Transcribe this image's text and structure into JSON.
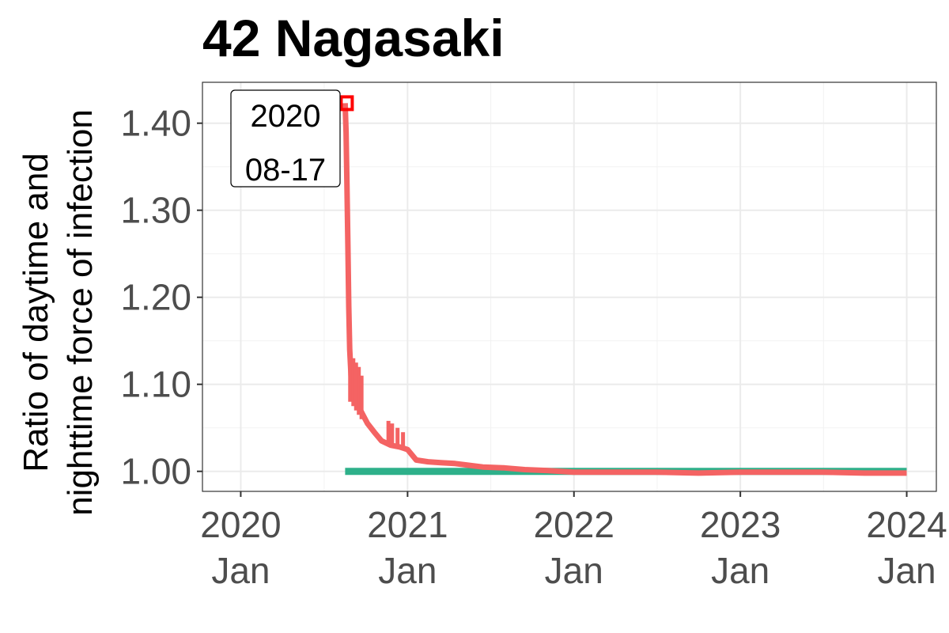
{
  "chart_data": {
    "type": "line",
    "title": "42 Nagasaki",
    "ylabel_lines": [
      "Ratio of daytime and",
      "nighttime force of infection"
    ],
    "xlabel": "",
    "x_ticks": [
      {
        "date": "2020-01-01",
        "year": "2020",
        "month": "Jan"
      },
      {
        "date": "2021-01-01",
        "year": "2021",
        "month": "Jan"
      },
      {
        "date": "2022-01-01",
        "year": "2022",
        "month": "Jan"
      },
      {
        "date": "2023-01-01",
        "year": "2023",
        "month": "Jan"
      },
      {
        "date": "2024-01-01",
        "year": "2024",
        "month": "Jan"
      }
    ],
    "y_ticks": [
      1.0,
      1.1,
      1.2,
      1.3,
      1.4
    ],
    "y_tick_labels": [
      "1.00",
      "1.10",
      "1.20",
      "1.30",
      "1.40"
    ],
    "xlim": [
      "2019-10-09",
      "2024-03-06"
    ],
    "ylim": [
      0.977,
      1.447
    ],
    "grid": true,
    "series": [
      {
        "color": "#2EB08A",
        "points": [
          [
            "2020-08-17",
            1.0
          ],
          [
            "2024-01-01",
            1.0
          ]
        ]
      },
      {
        "color": "#F46363",
        "points": [
          [
            "2020-08-17",
            1.423
          ],
          [
            "2020-08-19",
            1.39
          ],
          [
            "2020-08-21",
            1.33
          ],
          [
            "2020-08-23",
            1.26
          ],
          [
            "2020-08-25",
            1.19
          ],
          [
            "2020-08-27",
            1.14
          ],
          [
            "2020-08-30",
            1.11
          ],
          [
            "2020-09-03",
            1.09
          ],
          [
            "2020-09-10",
            1.08
          ],
          [
            "2020-09-20",
            1.07
          ],
          [
            "2020-10-05",
            1.055
          ],
          [
            "2020-10-20",
            1.045
          ],
          [
            "2020-11-05",
            1.035
          ],
          [
            "2020-11-25",
            1.03
          ],
          [
            "2020-12-15",
            1.028
          ],
          [
            "2021-01-01",
            1.025
          ],
          [
            "2021-01-20",
            1.013
          ],
          [
            "2021-02-15",
            1.011
          ],
          [
            "2021-03-15",
            1.01
          ],
          [
            "2021-04-15",
            1.009
          ],
          [
            "2021-05-15",
            1.007
          ],
          [
            "2021-06-15",
            1.005
          ],
          [
            "2021-08-01",
            1.004
          ],
          [
            "2021-09-15",
            1.002
          ],
          [
            "2021-11-01",
            1.001
          ],
          [
            "2022-01-01",
            0.999
          ],
          [
            "2022-04-01",
            0.999
          ],
          [
            "2022-07-01",
            0.999
          ],
          [
            "2022-10-01",
            0.998
          ],
          [
            "2023-01-01",
            0.999
          ],
          [
            "2023-04-01",
            0.999
          ],
          [
            "2023-07-01",
            0.999
          ],
          [
            "2023-10-01",
            0.998
          ],
          [
            "2024-01-01",
            0.998
          ]
        ]
      }
    ],
    "spikes": [
      {
        "date": "2020-08-28",
        "low": 1.08,
        "high": 1.145
      },
      {
        "date": "2020-09-04",
        "low": 1.075,
        "high": 1.13
      },
      {
        "date": "2020-09-10",
        "low": 1.07,
        "high": 1.125
      },
      {
        "date": "2020-09-16",
        "low": 1.065,
        "high": 1.12
      },
      {
        "date": "2020-09-22",
        "low": 1.06,
        "high": 1.11
      },
      {
        "date": "2020-11-20",
        "low": 1.032,
        "high": 1.058
      },
      {
        "date": "2020-11-28",
        "low": 1.03,
        "high": 1.055
      },
      {
        "date": "2020-12-10",
        "low": 1.028,
        "high": 1.05
      },
      {
        "date": "2020-12-22",
        "low": 1.026,
        "high": 1.045
      }
    ],
    "marker": {
      "date": "2020-08-17",
      "value": 1.423,
      "color": "#FF0000"
    },
    "annotation": {
      "date": "2020-08-17",
      "lines": [
        "2020",
        "08-17"
      ]
    }
  }
}
